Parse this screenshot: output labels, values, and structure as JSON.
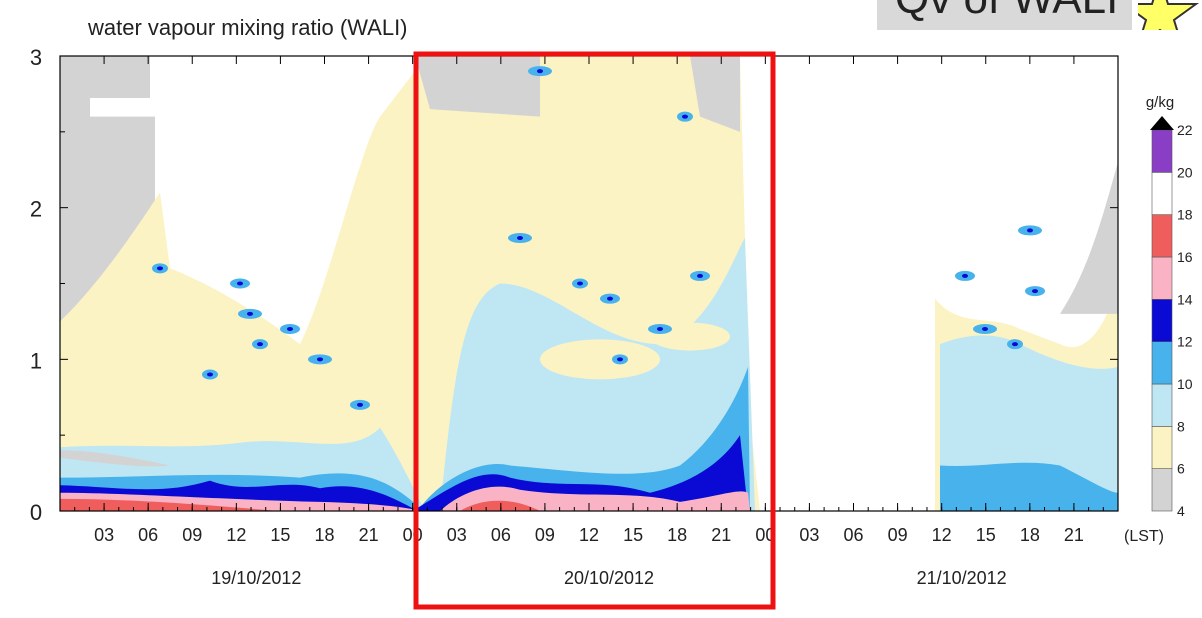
{
  "chart_data": {
    "type": "heatmap",
    "title": "water vapour mixing ratio (WALI)",
    "badge": "Qv of WALI",
    "xlabel_unit": "(LST)",
    "ylim": [
      0,
      3
    ],
    "y_ticks": [
      "0",
      "1",
      "2",
      "3"
    ],
    "x_hour_ticks": [
      [
        "03",
        "06",
        "09",
        "12",
        "15",
        "18",
        "21",
        "00"
      ],
      [
        "03",
        "06",
        "09",
        "12",
        "15",
        "18",
        "21",
        "00"
      ],
      [
        "03",
        "06",
        "09",
        "12",
        "15",
        "18",
        "21"
      ]
    ],
    "dates": [
      "19/10/2012",
      "20/10/2012",
      "21/10/2012"
    ],
    "highlight": "20/10/2012",
    "colorbar": {
      "unit": "g/kg",
      "labels": [
        "4",
        "6",
        "8",
        "10",
        "12",
        "14",
        "16",
        "18",
        "20",
        "22"
      ],
      "colors": [
        "#d3d3d3",
        "#fbf3c4",
        "#bfe6f3",
        "#48b2ec",
        "#0a0ad4",
        "#f9b3c4",
        "#ef5d5d",
        "#ffffff",
        "#8a3ec6"
      ]
    },
    "colors": {
      "grey": "#d3d3d3",
      "yellow": "#fbf3c4",
      "lightblue": "#bfe6f3",
      "blue": "#48b2ec",
      "navy": "#0a0ad4",
      "pink": "#f9b3c4",
      "red": "#ef5d5d",
      "highlight_box": "#ee1111"
    }
  }
}
